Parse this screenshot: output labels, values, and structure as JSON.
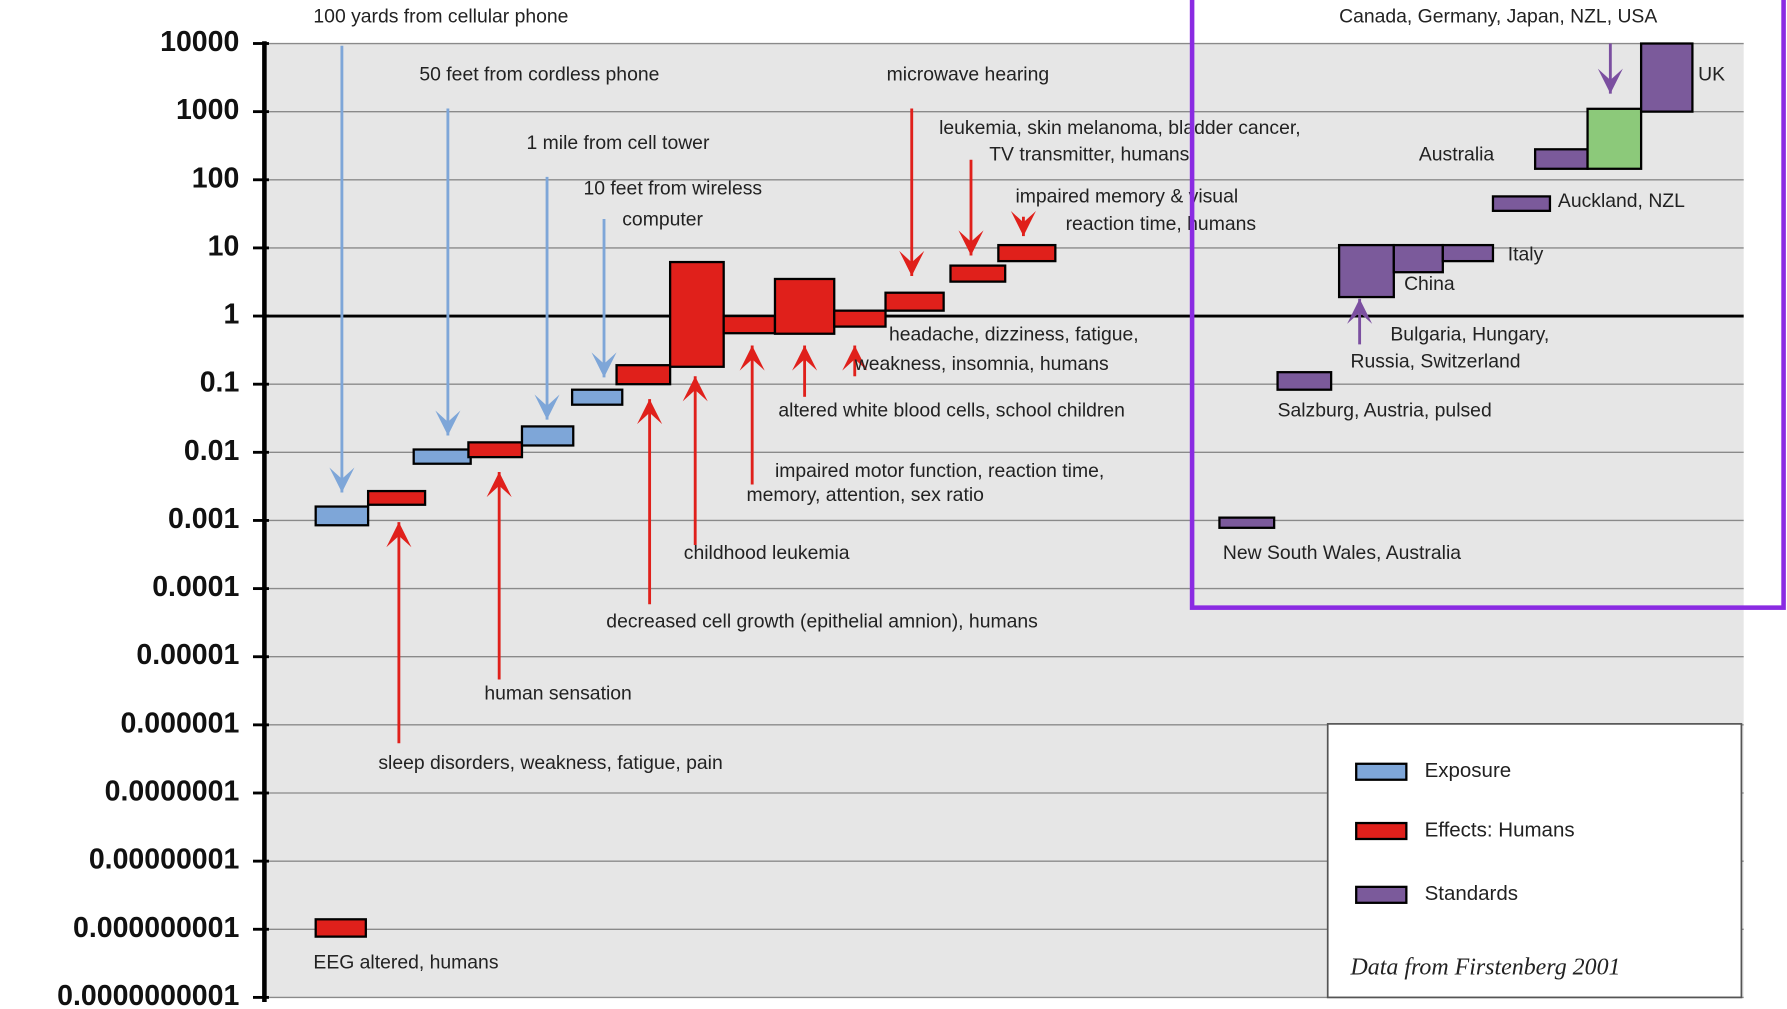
{
  "chart_data": {
    "type": "floating-bar",
    "log_scale": true,
    "grid": true,
    "ylim": [
      1e-10,
      10000
    ],
    "yticks": [
      10000,
      1000,
      100,
      10,
      1,
      0.1,
      0.01,
      0.001,
      0.0001,
      1e-05,
      1e-06,
      {
        "value": 1e-07,
        "label": "0.0000001"
      },
      {
        "value": 1e-08,
        "label": "0.00000001"
      },
      {
        "value": 1e-09,
        "label": "0.000000001"
      },
      {
        "value": 1e-10,
        "label": "0.0000000001"
      }
    ],
    "series": [
      {
        "name": "Exposure",
        "color": "#7ea6d8"
      },
      {
        "name": "Effects: Humans",
        "color": "#e0201b"
      },
      {
        "name": "Standards",
        "color": "#7b5a9b"
      }
    ],
    "bars": [
      {
        "series": 0,
        "low": 0.00085,
        "high": 0.0016
      },
      {
        "series": 1,
        "low": 0.0017,
        "high": 0.0027
      },
      {
        "series": 0,
        "low": 0.0068,
        "high": 0.011
      },
      {
        "series": 1,
        "low": 0.0085,
        "high": 0.014
      },
      {
        "series": 0,
        "low": 0.0126,
        "high": 0.024
      },
      {
        "series": 0,
        "low": 0.05,
        "high": 0.083
      },
      {
        "series": 1,
        "low": 0.1,
        "high": 0.19
      },
      {
        "series": 1,
        "low": 0.18,
        "high": 6.2
      },
      {
        "series": 1,
        "low": 0.56,
        "high": 1
      },
      {
        "series": 1,
        "low": 0.55,
        "high": 3.5
      },
      {
        "series": 1,
        "low": 0.7,
        "high": 1.2
      },
      {
        "series": 1,
        "low": 1.2,
        "high": 2.2
      },
      {
        "series": 1,
        "low": 3.2,
        "high": 5.5
      },
      {
        "series": 1,
        "low": 6.4,
        "high": 11
      },
      {
        "series": 1,
        "low": 7.8e-10,
        "high": 1.4e-09
      },
      {
        "series": 2,
        "low": 0.00078,
        "high": 0.0011
      },
      {
        "series": 2,
        "low": 0.083,
        "high": 0.15
      },
      {
        "series": 2,
        "low": 1.9,
        "high": 11
      },
      {
        "series": 2,
        "low": 4.4,
        "high": 11
      },
      {
        "series": 2,
        "low": 6.4,
        "high": 11
      },
      {
        "series": 2,
        "low": 35,
        "high": 57
      },
      {
        "series": 2,
        "low": 145,
        "high": 280
      },
      {
        "series": 2,
        "low": 145,
        "high": 1100,
        "color": "#8cc97a"
      },
      {
        "series": 2,
        "low": 1000,
        "high": 10000
      }
    ],
    "annotations": [
      [
        "100 yards from cellular phone"
      ],
      [
        "50 feet from cordless phone"
      ],
      [
        "1 mile from cell tower"
      ],
      [
        "10 feet from wireless",
        "computer"
      ],
      [
        "microwave hearing"
      ],
      [
        "leukemia, skin melanoma, bladder cancer,",
        "TV transmitter, humans"
      ],
      [
        "impaired memory & visual",
        "reaction time, humans"
      ],
      [
        "headache, dizziness, fatigue,",
        "weakness, insomnia, humans"
      ],
      [
        "altered white blood cells, school children"
      ],
      [
        "impaired motor function, reaction time,",
        "memory, attention, sex ratio"
      ],
      [
        "childhood leukemia"
      ],
      [
        "decreased cell growth (epithelial amnion), humans"
      ],
      [
        "human sensation"
      ],
      [
        "sleep disorders, weakness, fatigue, pain"
      ],
      [
        "EEG altered, humans"
      ],
      [
        "Canada, Germany, Japan, NZL, USA"
      ],
      [
        "UK"
      ],
      [
        "Australia"
      ],
      [
        "Auckland, NZL"
      ],
      [
        "Italy"
      ],
      [
        "China"
      ],
      [
        "Bulgaria, Hungary,",
        "Russia, Switzerland"
      ],
      [
        "Salzburg, Austria, pulsed"
      ],
      [
        "New South Wales, Australia"
      ]
    ],
    "note": "Data from Firstenberg 2001"
  }
}
